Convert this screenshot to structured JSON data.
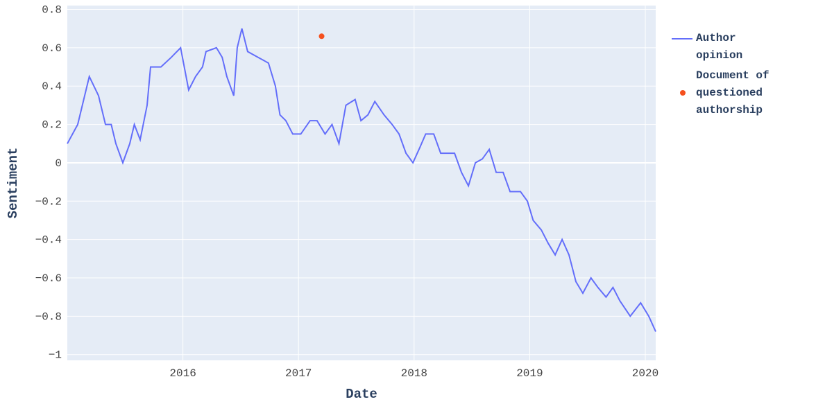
{
  "chart_data": {
    "type": "line",
    "xlabel": "Date",
    "ylabel": "Sentiment",
    "xlim": [
      2015.0,
      2020.09
    ],
    "xticks": [
      2016,
      2017,
      2018,
      2019,
      2020
    ],
    "ylim": [
      -1.03,
      0.82
    ],
    "yticks": [
      0.8,
      0.6,
      0.4,
      0.2,
      0,
      {
        "value": -0.2,
        "label": "−0.2"
      },
      {
        "value": -0.4,
        "label": "−0.4"
      },
      {
        "value": -0.6,
        "label": "−0.6"
      },
      {
        "value": -0.8,
        "label": "−0.8"
      },
      {
        "value": -1,
        "label": "−1"
      }
    ],
    "grid": true,
    "legend": "right",
    "series": [
      {
        "name": "Author opinion",
        "color": "#636efa",
        "mode": "lines",
        "x": [
          2015.0,
          2015.09,
          2015.15,
          2015.19,
          2015.27,
          2015.33,
          2015.38,
          2015.42,
          2015.48,
          2015.54,
          2015.58,
          2015.63,
          2015.69,
          2015.72,
          2015.81,
          2015.9,
          2015.98,
          2016.05,
          2016.11,
          2016.17,
          2016.2,
          2016.29,
          2016.34,
          2016.38,
          2016.44,
          2016.47,
          2016.51,
          2016.56,
          2016.65,
          2016.74,
          2016.8,
          2016.84,
          2016.89,
          2016.95,
          2017.02,
          2017.1,
          2017.16,
          2017.23,
          2017.29,
          2017.35,
          2017.41,
          2017.49,
          2017.54,
          2017.6,
          2017.66,
          2017.74,
          2017.81,
          2017.87,
          2017.93,
          2017.99,
          2018.05,
          2018.1,
          2018.17,
          2018.23,
          2018.29,
          2018.35,
          2018.41,
          2018.47,
          2018.53,
          2018.59,
          2018.65,
          2018.71,
          2018.77,
          2018.83,
          2018.92,
          2018.98,
          2019.03,
          2019.1,
          2019.16,
          2019.22,
          2019.28,
          2019.34,
          2019.4,
          2019.46,
          2019.53,
          2019.59,
          2019.66,
          2019.72,
          2019.78,
          2019.87,
          2019.96,
          2020.03,
          2020.09
        ],
        "values": [
          0.1,
          0.2,
          0.35,
          0.45,
          0.35,
          0.2,
          0.2,
          0.1,
          0.0,
          0.1,
          0.2,
          0.12,
          0.3,
          0.5,
          0.5,
          0.55,
          0.6,
          0.38,
          0.45,
          0.5,
          0.58,
          0.6,
          0.55,
          0.45,
          0.35,
          0.6,
          0.7,
          0.58,
          0.55,
          0.52,
          0.4,
          0.25,
          0.22,
          0.15,
          0.15,
          0.22,
          0.22,
          0.15,
          0.2,
          0.1,
          0.3,
          0.33,
          0.22,
          0.25,
          0.32,
          0.25,
          0.2,
          0.15,
          0.05,
          0.0,
          0.08,
          0.15,
          0.15,
          0.05,
          0.05,
          0.05,
          -0.05,
          -0.12,
          0.0,
          0.02,
          0.07,
          -0.05,
          -0.05,
          -0.15,
          -0.15,
          -0.2,
          -0.3,
          -0.35,
          -0.42,
          -0.48,
          -0.4,
          -0.48,
          -0.62,
          -0.68,
          -0.6,
          -0.65,
          -0.7,
          -0.65,
          -0.72,
          -0.8,
          -0.73,
          -0.8,
          -0.88
        ]
      },
      {
        "name": "Document of questioned authorship",
        "color": "#f5501e",
        "mode": "markers",
        "x": [
          2017.2
        ],
        "values": [
          0.66
        ]
      }
    ]
  }
}
